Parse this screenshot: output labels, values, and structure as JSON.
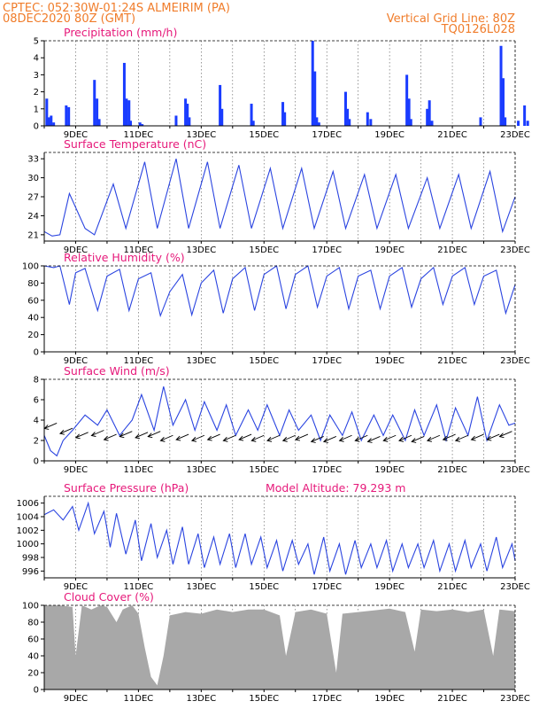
{
  "header": {
    "station": "CPTEC:   052:30W-01:24S   ALMEIRIM (PA)",
    "run": "08DEC2020 80Z (GMT)",
    "grid_note": "Vertical Grid Line: 80Z",
    "model": "TQ0126L028"
  },
  "chart_data": [
    {
      "type": "bar",
      "title": "Precipitation (mm/h)",
      "ylim": [
        0,
        5
      ],
      "yticks": [
        "0",
        "1",
        "2",
        "3",
        "4",
        "5"
      ],
      "xlim": [
        0,
        15
      ],
      "xticks": [
        "9DEC",
        "11DEC",
        "13DEC",
        "15DEC",
        "17DEC",
        "19DEC",
        "21DEC",
        "23DEC"
      ],
      "color": "#1a3cff",
      "x": [
        0.08,
        0.15,
        0.22,
        0.3,
        0.7,
        0.78,
        1.6,
        1.68,
        1.75,
        2.55,
        2.62,
        2.7,
        2.75,
        3.05,
        3.12,
        4.2,
        4.5,
        4.56,
        4.62,
        5.6,
        5.66,
        6.6,
        6.66,
        7.6,
        7.66,
        8.55,
        8.62,
        8.68,
        8.75,
        9.6,
        9.66,
        9.72,
        10.3,
        10.4,
        11.55,
        11.62,
        11.68,
        12.2,
        12.27,
        12.35,
        13.9,
        14.55,
        14.62,
        14.68,
        15.1,
        15.3,
        15.4
      ],
      "values": [
        1.6,
        0.5,
        0.6,
        0.2,
        1.2,
        1.1,
        2.7,
        1.6,
        0.4,
        3.7,
        1.6,
        1.5,
        0.3,
        0.2,
        0.1,
        0.6,
        1.6,
        1.3,
        0.5,
        2.4,
        1.0,
        1.3,
        0.3,
        1.4,
        0.8,
        5.0,
        3.2,
        0.5,
        0.2,
        2.0,
        1.0,
        0.4,
        0.8,
        0.4,
        3.0,
        1.6,
        0.4,
        1.0,
        1.5,
        0.3,
        0.5,
        4.7,
        2.8,
        0.5,
        0.3,
        1.2,
        0.3
      ]
    },
    {
      "type": "line",
      "title": "Surface Temperature (nC)",
      "ylim": [
        20,
        34
      ],
      "yticks": [
        "21",
        "24",
        "27",
        "30",
        "33"
      ],
      "xlim": [
        0,
        15
      ],
      "xticks": [
        "9DEC",
        "11DEC",
        "13DEC",
        "15DEC",
        "17DEC",
        "19DEC",
        "21DEC",
        "23DEC"
      ],
      "color": "#2a44e0",
      "x": [
        0,
        0.25,
        0.5,
        0.8,
        1.3,
        1.6,
        2.2,
        2.6,
        3.2,
        3.6,
        4.2,
        4.6,
        5.2,
        5.6,
        6.2,
        6.6,
        7.2,
        7.6,
        8.2,
        8.6,
        9.2,
        9.6,
        10.2,
        10.6,
        11.2,
        11.6,
        12.2,
        12.6,
        13.2,
        13.6,
        14.2,
        14.6,
        15.0
      ],
      "values": [
        21.5,
        20.8,
        21.0,
        27.5,
        22.0,
        21.0,
        29.0,
        22.0,
        32.5,
        22.0,
        33.0,
        22.0,
        32.5,
        22.0,
        32.0,
        22.0,
        31.5,
        22.0,
        31.5,
        22.0,
        31.0,
        22.0,
        30.5,
        22.0,
        30.5,
        22.0,
        30.0,
        22.0,
        30.5,
        22.0,
        31.0,
        21.5,
        27.0
      ]
    },
    {
      "type": "line",
      "title": "Relative Humidity (%)",
      "ylim": [
        0,
        100
      ],
      "yticks": [
        "0",
        "20",
        "40",
        "60",
        "80",
        "100"
      ],
      "xlim": [
        0,
        15
      ],
      "xticks": [
        "9DEC",
        "11DEC",
        "13DEC",
        "15DEC",
        "17DEC",
        "19DEC",
        "21DEC",
        "23DEC"
      ],
      "color": "#2a44e0",
      "x": [
        0,
        0.3,
        0.5,
        0.8,
        1.0,
        1.3,
        1.7,
        2.0,
        2.4,
        2.7,
        3.0,
        3.4,
        3.7,
        4.0,
        4.4,
        4.7,
        5.0,
        5.4,
        5.7,
        6.0,
        6.4,
        6.7,
        7.0,
        7.4,
        7.7,
        8.0,
        8.4,
        8.7,
        9.0,
        9.4,
        9.7,
        10.0,
        10.4,
        10.7,
        11.0,
        11.4,
        11.7,
        12.0,
        12.4,
        12.7,
        13.0,
        13.4,
        13.7,
        14.0,
        14.4,
        14.7,
        15.0
      ],
      "values": [
        100,
        98,
        100,
        55,
        92,
        97,
        48,
        88,
        96,
        48,
        85,
        92,
        42,
        70,
        90,
        43,
        80,
        95,
        45,
        85,
        98,
        48,
        90,
        100,
        50,
        90,
        100,
        52,
        88,
        98,
        50,
        88,
        95,
        50,
        88,
        98,
        52,
        85,
        98,
        55,
        88,
        98,
        55,
        88,
        95,
        45,
        78
      ]
    },
    {
      "type": "line",
      "title": "Surface Wind (m/s)",
      "ylim": [
        0,
        8
      ],
      "yticks": [
        "0",
        "2",
        "4",
        "6",
        "8"
      ],
      "xlim": [
        0,
        15
      ],
      "xticks": [
        "9DEC",
        "11DEC",
        "13DEC",
        "15DEC",
        "17DEC",
        "19DEC",
        "21DEC",
        "23DEC"
      ],
      "color": "#2a44e0",
      "x": [
        0,
        0.2,
        0.4,
        0.6,
        0.9,
        1.3,
        1.7,
        2.0,
        2.4,
        2.8,
        3.1,
        3.5,
        3.8,
        4.1,
        4.5,
        4.8,
        5.1,
        5.5,
        5.8,
        6.1,
        6.5,
        6.8,
        7.1,
        7.5,
        7.8,
        8.1,
        8.5,
        8.8,
        9.1,
        9.5,
        9.8,
        10.1,
        10.5,
        10.8,
        11.1,
        11.5,
        11.8,
        12.1,
        12.5,
        12.8,
        13.1,
        13.5,
        13.8,
        14.1,
        14.5,
        14.8,
        15.0
      ],
      "values": [
        2.5,
        1.0,
        0.5,
        2.0,
        3.0,
        4.5,
        3.5,
        5.0,
        2.5,
        4.0,
        6.5,
        3.0,
        7.3,
        3.5,
        6.0,
        3.0,
        5.8,
        3.0,
        5.5,
        2.5,
        5.0,
        3.0,
        5.5,
        2.5,
        5.0,
        3.0,
        4.5,
        2.0,
        4.5,
        2.5,
        4.8,
        2.0,
        4.5,
        2.5,
        4.5,
        2.0,
        5.0,
        2.5,
        5.5,
        2.0,
        5.2,
        2.5,
        6.3,
        2.0,
        5.5,
        3.5,
        3.7
      ],
      "arrows": [
        [
          0.4,
          3.7
        ],
        [
          0.9,
          3.2
        ],
        [
          1.4,
          2.8
        ],
        [
          1.9,
          3.0
        ],
        [
          2.3,
          2.6
        ],
        [
          2.8,
          2.9
        ],
        [
          3.3,
          2.8
        ],
        [
          3.7,
          2.9
        ],
        [
          4.1,
          2.5
        ],
        [
          4.6,
          2.6
        ],
        [
          5.1,
          2.5
        ],
        [
          5.6,
          2.6
        ],
        [
          6.1,
          2.5
        ],
        [
          6.6,
          2.6
        ],
        [
          7.0,
          2.5
        ],
        [
          7.5,
          2.5
        ],
        [
          8.0,
          2.5
        ],
        [
          8.4,
          2.6
        ],
        [
          8.9,
          2.4
        ],
        [
          9.3,
          2.4
        ],
        [
          9.8,
          2.5
        ],
        [
          10.3,
          2.5
        ],
        [
          10.7,
          2.4
        ],
        [
          11.2,
          2.5
        ],
        [
          11.7,
          2.5
        ],
        [
          12.1,
          2.4
        ],
        [
          12.6,
          2.5
        ],
        [
          13.1,
          2.6
        ],
        [
          13.5,
          2.5
        ],
        [
          14.0,
          2.6
        ],
        [
          14.5,
          2.6
        ],
        [
          14.9,
          2.9
        ]
      ]
    },
    {
      "type": "line",
      "title": "Surface Pressure (hPa)",
      "annotation": "Model Altitude: 79.293 m",
      "ylim": [
        995,
        1007
      ],
      "yticks": [
        "996",
        "998",
        "1000",
        "1002",
        "1004",
        "1006"
      ],
      "xlim": [
        0,
        15
      ],
      "xticks": [
        "9DEC",
        "11DEC",
        "13DEC",
        "15DEC",
        "17DEC",
        "19DEC",
        "21DEC",
        "23DEC"
      ],
      "color": "#2a44e0",
      "x": [
        0,
        0.3,
        0.6,
        0.9,
        1.1,
        1.4,
        1.6,
        1.9,
        2.1,
        2.3,
        2.6,
        2.9,
        3.1,
        3.4,
        3.6,
        3.9,
        4.1,
        4.4,
        4.6,
        4.9,
        5.1,
        5.4,
        5.6,
        5.9,
        6.1,
        6.4,
        6.6,
        6.9,
        7.1,
        7.4,
        7.6,
        7.9,
        8.1,
        8.4,
        8.6,
        8.9,
        9.1,
        9.4,
        9.6,
        9.9,
        10.1,
        10.4,
        10.6,
        10.9,
        11.1,
        11.4,
        11.6,
        11.9,
        12.1,
        12.4,
        12.6,
        12.9,
        13.1,
        13.4,
        13.6,
        13.9,
        14.1,
        14.4,
        14.6,
        14.9,
        15.0
      ],
      "values": [
        1004.3,
        1005.0,
        1003.5,
        1005.5,
        1002.0,
        1006.0,
        1001.5,
        1004.8,
        999.5,
        1004.5,
        998.5,
        1003.5,
        997.5,
        1003.0,
        998.0,
        1002.0,
        997.0,
        1002.5,
        997.0,
        1001.5,
        996.5,
        1001.0,
        997.0,
        1001.5,
        996.5,
        1001.5,
        997.0,
        1001.0,
        996.5,
        1000.5,
        996.0,
        1000.5,
        997.0,
        1000.0,
        995.5,
        1001.0,
        996.0,
        1000.0,
        995.5,
        1000.5,
        996.5,
        1000.0,
        996.5,
        1000.5,
        996.0,
        1000.0,
        996.5,
        1000.0,
        996.5,
        1000.5,
        996.0,
        1000.0,
        996.0,
        1000.5,
        996.5,
        1000.0,
        996.0,
        1001.0,
        996.5,
        1000.0,
        997.5
      ]
    },
    {
      "type": "area",
      "title": "Cloud Cover (%)",
      "ylim": [
        0,
        100
      ],
      "yticks": [
        "0",
        "20",
        "40",
        "60",
        "80",
        "100"
      ],
      "xlim": [
        0,
        15
      ],
      "xticks": [
        "9DEC",
        "11DEC",
        "13DEC",
        "15DEC",
        "17DEC",
        "19DEC",
        "21DEC",
        "23DEC"
      ],
      "color": "#a8a8a8",
      "x": [
        0,
        0.5,
        0.9,
        1.0,
        1.2,
        1.5,
        1.8,
        2.0,
        2.3,
        2.5,
        2.8,
        3.0,
        3.2,
        3.4,
        3.6,
        3.8,
        4.0,
        4.5,
        5.0,
        5.5,
        6.0,
        6.5,
        7.0,
        7.5,
        7.7,
        8.0,
        8.5,
        9.0,
        9.3,
        9.5,
        10.0,
        10.5,
        11.0,
        11.5,
        11.8,
        12.0,
        12.5,
        13.0,
        13.5,
        14.0,
        14.3,
        14.5,
        15.0
      ],
      "values": [
        100,
        100,
        98,
        40,
        100,
        95,
        100,
        98,
        80,
        95,
        100,
        90,
        50,
        15,
        5,
        40,
        88,
        92,
        90,
        95,
        92,
        95,
        95,
        88,
        40,
        92,
        95,
        90,
        20,
        90,
        92,
        94,
        96,
        92,
        45,
        95,
        93,
        95,
        92,
        95,
        40,
        95,
        93
      ]
    }
  ]
}
